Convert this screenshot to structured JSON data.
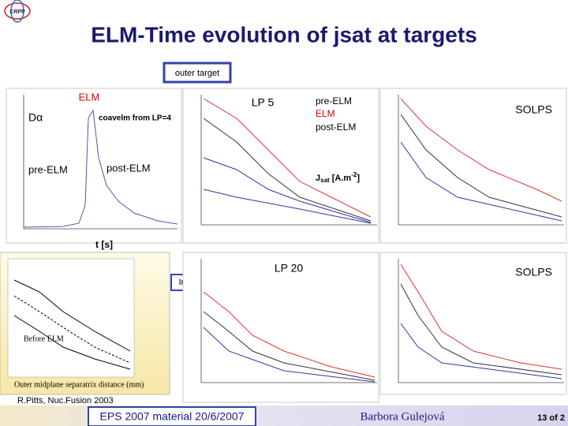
{
  "header": {
    "logo": "CRPP",
    "title": "ELM-Time evolution of jsat at targets",
    "section_label": "outer target"
  },
  "panels": [
    {
      "labels": [
        "ELM",
        "Dα",
        "coavelm from LP=4",
        "pre-ELM",
        "post-ELM",
        "t [s]"
      ]
    },
    {
      "labels": [
        "LP 5",
        "pre-ELM",
        "ELM",
        "post-ELM"
      ],
      "jsat": {
        "main": "J",
        "sub": "sat",
        "unit": " [A.m",
        "exp": "-2",
        "close": "]"
      }
    },
    {
      "labels": [
        "SOLPS"
      ]
    },
    {
      "labels": [
        "Before ELM",
        "Outer midplane separatrix distance (mm)",
        "Inner",
        "R.Pitts, Nuc.Fusion 2003"
      ]
    },
    {
      "labels": [
        "LP 20"
      ]
    },
    {
      "labels": [
        "SOLPS"
      ]
    }
  ],
  "footer": {
    "event": "EPS 2007 material  20/6/2007",
    "author": "Barbora Gulejová",
    "page": "13 of 2"
  }
}
